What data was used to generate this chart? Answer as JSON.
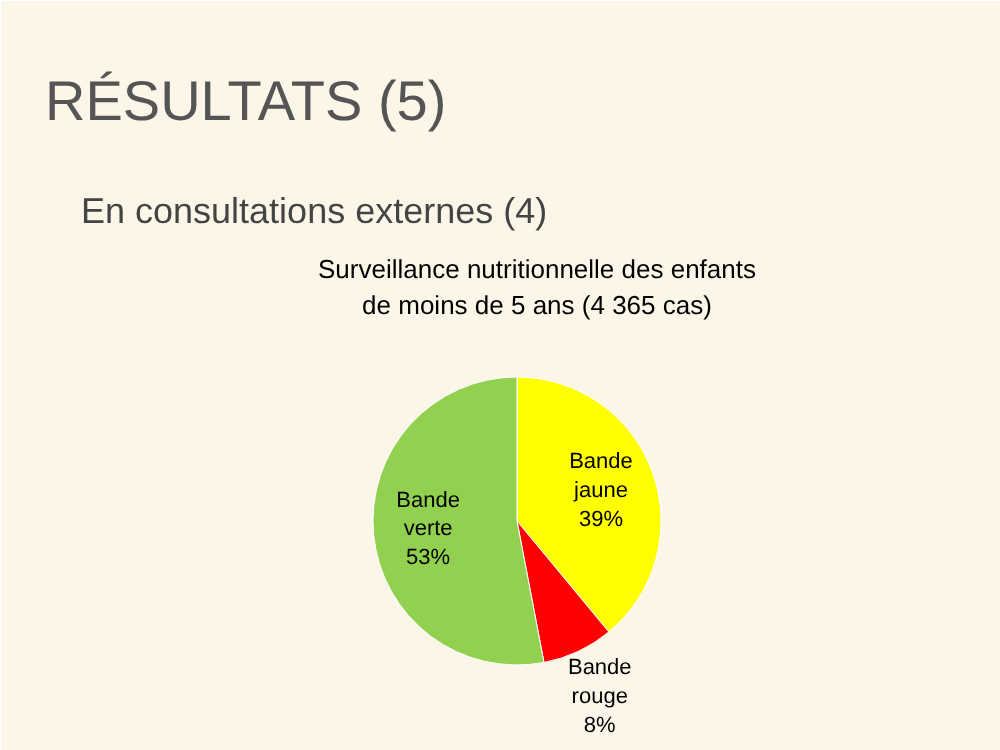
{
  "chart_data": {
    "type": "pie",
    "title": "Surveillance nutritionnelle des enfants\nde moins de 5 ans (4 365 cas)",
    "categories": [
      "Bande jaune",
      "Bande rouge",
      "Bande verte"
    ],
    "values": [
      39,
      8,
      53
    ],
    "colors": [
      "#ffff00",
      "#ff0000",
      "#92d050"
    ],
    "value_labels": [
      "39%",
      "8%",
      "53%"
    ],
    "annotations": [
      "RÉSULTATS (5)",
      "En consultations externes (4)"
    ]
  }
}
